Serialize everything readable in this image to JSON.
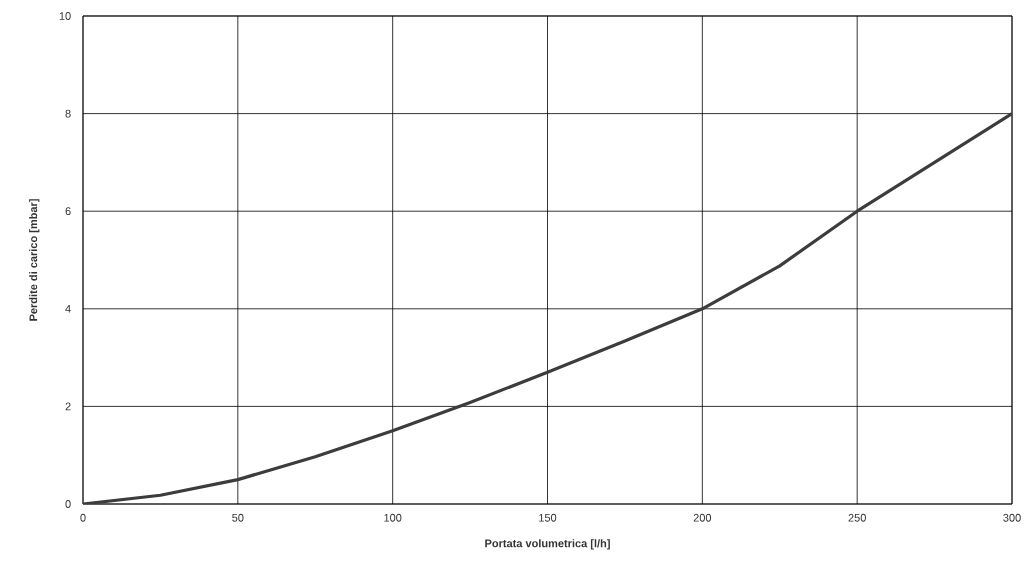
{
  "chart_data": {
    "type": "line",
    "xlabel": "Portata volumetrica [l/h]",
    "ylabel": "Perdite di carico [mbar]",
    "x": [
      0,
      25,
      50,
      75,
      100,
      125,
      150,
      175,
      200,
      225,
      250,
      275,
      300
    ],
    "series": [
      {
        "color": "#3c3c3c",
        "values": [
          0,
          0.18,
          0.5,
          0.97,
          1.5,
          2.08,
          2.7,
          3.34,
          4.0,
          4.88,
          6.0,
          7.0,
          8.0
        ]
      }
    ],
    "xlim": [
      0,
      300
    ],
    "ylim": [
      0,
      10
    ],
    "xticks": [
      0,
      50,
      100,
      150,
      200,
      250,
      300
    ],
    "yticks": [
      0,
      2,
      4,
      6,
      8,
      10
    ],
    "grid": true,
    "marker": "none",
    "line_style": "solid"
  }
}
